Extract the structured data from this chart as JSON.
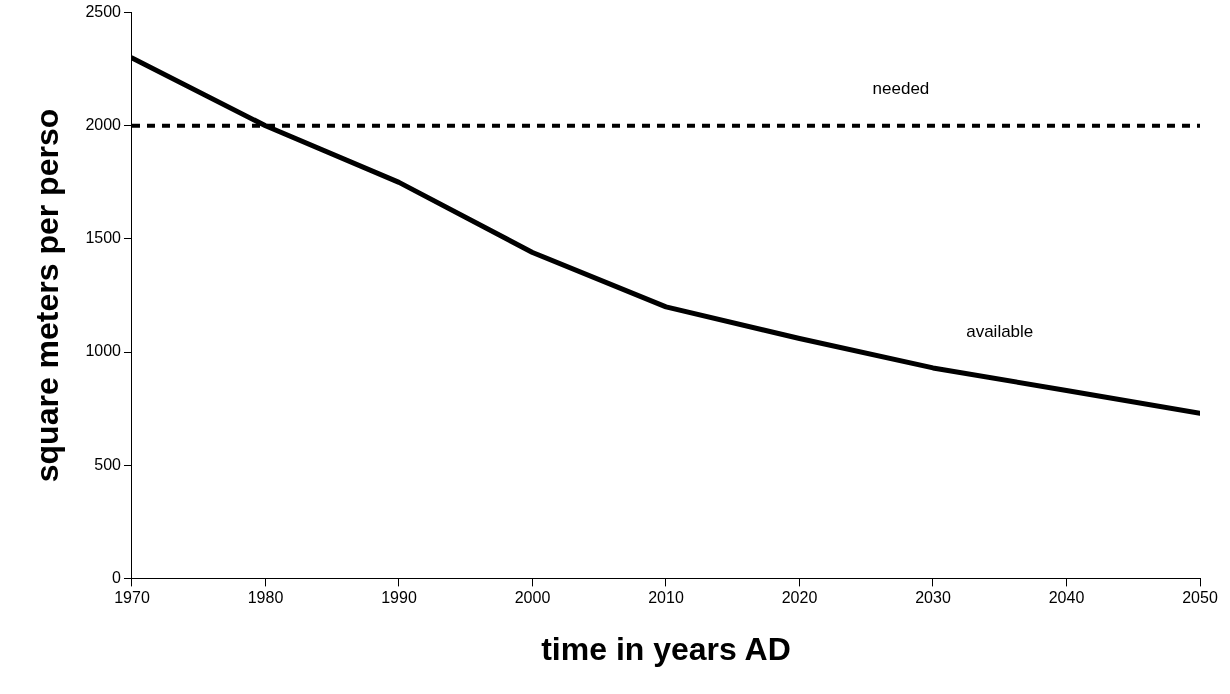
{
  "chart_data": {
    "type": "line",
    "xlabel": "time in years AD",
    "ylabel": "square meters per perso",
    "x": [
      1970,
      1980,
      1990,
      2000,
      2010,
      2020,
      2030,
      2040,
      2050
    ],
    "series": [
      {
        "name": "available",
        "color": "#000000",
        "values": [
          2300,
          2000,
          1750,
          1440,
          1200,
          1060,
          930,
          830,
          730
        ]
      }
    ],
    "xlim": [
      1970,
      2050
    ],
    "xticks": [
      1970,
      1980,
      1990,
      2000,
      2010,
      2020,
      2030,
      2040,
      2050
    ],
    "ylim": [
      0,
      2500
    ],
    "yticks": [
      0,
      500,
      1000,
      1500,
      2000,
      2500
    ],
    "ref_lines": [
      {
        "axis": "y",
        "value": 2000,
        "label": "needed",
        "color": "#000000",
        "line_style": "dashed"
      }
    ],
    "grid": false,
    "legend": false,
    "marker": "none",
    "line_style": "solid"
  }
}
